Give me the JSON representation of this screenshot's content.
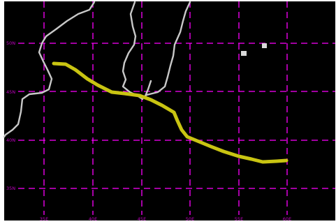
{
  "map": {
    "background_color": "#000000",
    "grid_color": "#ff00ff",
    "coastline_color": "#c8c8c8",
    "track_color": "#c9c412",
    "marker_color": "#d8d8d8",
    "lon_labels": [
      "35E",
      "40E",
      "45E",
      "50E",
      "55E",
      "60E"
    ],
    "lat_labels": [
      "50N",
      "45N",
      "40N",
      "35N"
    ]
  }
}
